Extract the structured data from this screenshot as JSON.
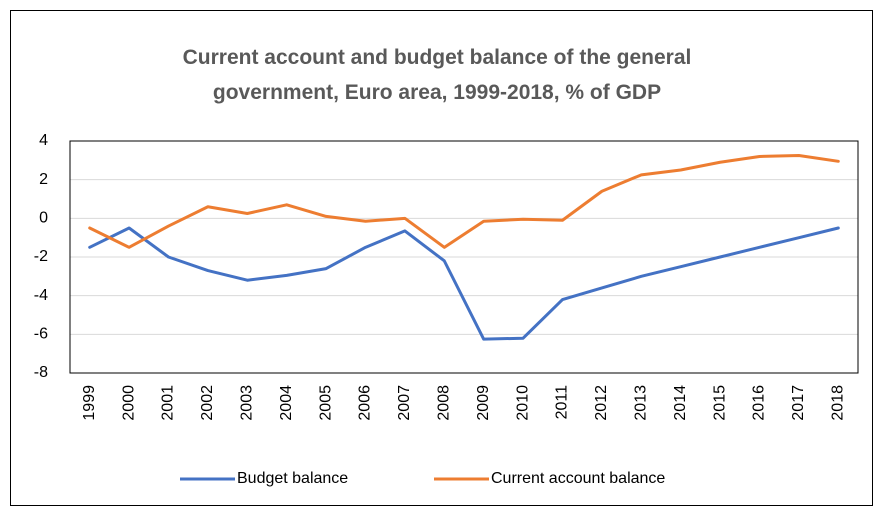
{
  "chart_data": {
    "type": "line",
    "title": "Current account and budget balance of the general government, Euro area, 1999-2018, % of GDP",
    "categories": [
      "1999",
      "2000",
      "2001",
      "2002",
      "2003",
      "2004",
      "2005",
      "2006",
      "2007",
      "2008",
      "2009",
      "2010",
      "2011",
      "2012",
      "2013",
      "2014",
      "2015",
      "2016",
      "2017",
      "2018"
    ],
    "series": [
      {
        "name": "Budget balance",
        "color": "#4472c4",
        "values": [
          -1.5,
          -0.5,
          -2.0,
          -2.7,
          -3.2,
          -2.95,
          -2.6,
          -1.5,
          -0.65,
          -2.2,
          -6.25,
          -6.2,
          -4.2,
          -3.6,
          -3.0,
          -2.5,
          -2.0,
          -1.5,
          -1.0,
          -0.5
        ]
      },
      {
        "name": "Current account balance",
        "color": "#ed7d31",
        "values": [
          -0.5,
          -1.5,
          -0.4,
          0.6,
          0.25,
          0.7,
          0.1,
          -0.15,
          0.0,
          -1.5,
          -0.15,
          -0.05,
          -0.1,
          1.4,
          2.25,
          2.5,
          2.9,
          3.2,
          3.25,
          2.95
        ]
      }
    ],
    "ylim": [
      -8,
      4
    ],
    "yticks": [
      -8,
      -6,
      -4,
      -2,
      0,
      2,
      4
    ],
    "grid": true,
    "legend": "bottom"
  }
}
